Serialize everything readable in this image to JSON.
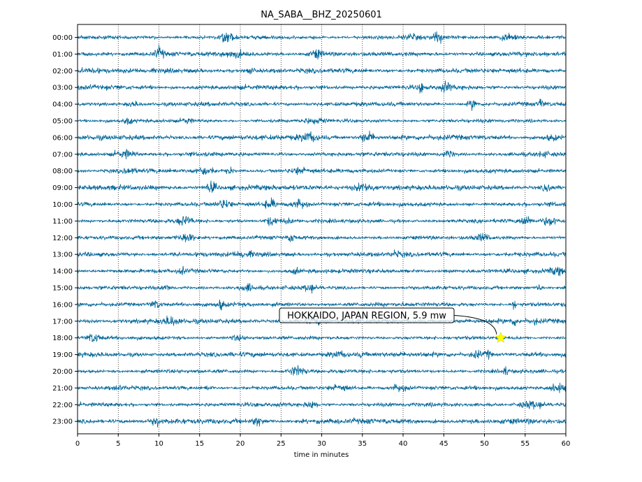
{
  "chart_data": {
    "type": "line",
    "title": "NA_SABA__BHZ_20250601",
    "xlabel": "time in minutes",
    "ylabel": "",
    "xlim": [
      0,
      60
    ],
    "x_ticks": [
      "0",
      "5",
      "10",
      "15",
      "20",
      "25",
      "30",
      "35",
      "40",
      "45",
      "50",
      "55",
      "60"
    ],
    "y_tick_labels": [
      "00:00",
      "01:00",
      "02:00",
      "03:00",
      "04:00",
      "05:00",
      "06:00",
      "07:00",
      "08:00",
      "09:00",
      "10:00",
      "11:00",
      "12:00",
      "13:00",
      "14:00",
      "15:00",
      "16:00",
      "17:00",
      "18:00",
      "19:00",
      "20:00",
      "21:00",
      "22:00",
      "23:00"
    ],
    "grid": "vertical dotted at x ticks",
    "trace_color": "#006699",
    "annotation": {
      "text": "HOKKAIDO, JAPAN REGION, 5.9 mw",
      "marker": "star",
      "marker_color": "#ffff00",
      "x": 52,
      "row": "18:00"
    }
  }
}
